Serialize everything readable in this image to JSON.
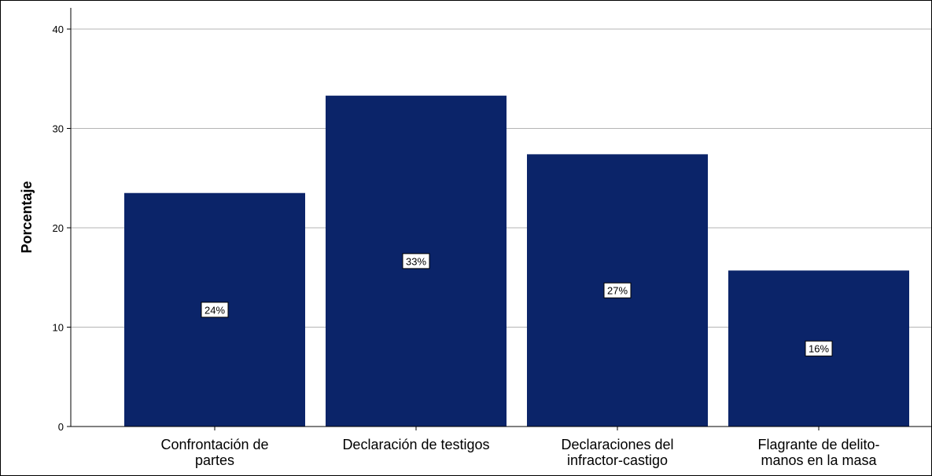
{
  "chart_data": {
    "type": "bar",
    "categories": [
      [
        "Confrontación de",
        "partes"
      ],
      [
        "Declaración de testigos"
      ],
      [
        "Declaraciones del",
        "infractor-castigo"
      ],
      [
        "Flagrante de delito-",
        "manos en la masa"
      ]
    ],
    "values": [
      23.5,
      33.3,
      27.4,
      15.7
    ],
    "data_labels": [
      "24%",
      "33%",
      "27%",
      "16%"
    ],
    "ylabel": "Porcentaje",
    "xlabel": "",
    "ylim": [
      0,
      40
    ],
    "yticks": [
      0,
      10,
      20,
      30,
      40
    ],
    "grid": true,
    "colors": {
      "bar": "#0b2469",
      "grid": "#b5b5b5",
      "axis": "#000000"
    }
  }
}
